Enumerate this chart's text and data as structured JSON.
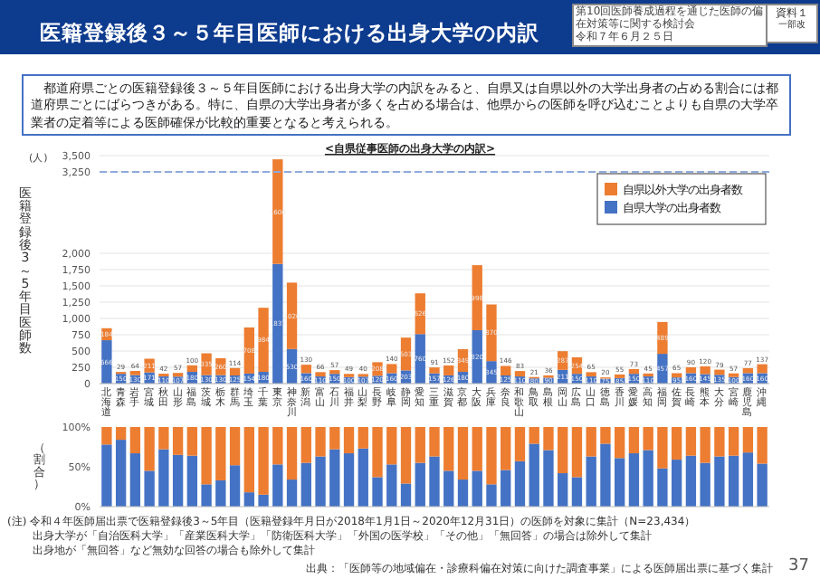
{
  "chart_data": [
    {
      "type": "bar",
      "stacked": true,
      "title": "医籍登録後３～５年目医師における出身大学の内訳",
      "subtitle": "<自県従事医師の出身大学の内訳>",
      "ylabel": "医籍登録後3～5年目医師数",
      "annotations": [
        "第10回医師養成過程を通じた医師の偏在対策等に関する検討会",
        "令和７年６月２５日",
        "資料１",
        "一部改",
        "都道府県ごとの医籍登録後３～５年目医師における出身大学の内訳をみると、自県又は自県以外の大学出身者の占める割合には都道府県ごとにばらつきがある。特に、自県の大学出身者が多くを占める場合は、他県からの医師を呼び込むことよりも自県の大学卒業者の定着等による医師確保が比較的重要となると考えられる。",
        "(人)",
        "(注) 令和４年医師届出票で医籍登録後3～5年目（医籍登録年月日が2018年1月1日～2020年12月31日）の医師を対象に集計（N=23,434）",
        "出身大学が「自治医科大学」「産業医科大学」「防衛医科大学」「外国の医学校」「その他」「無回答」の場合は除外して集計",
        "出身地が「無回答」など無効な回答の場合も除外して集計",
        "出典：「医師等の地域偏在・診療科偏在対策に向けた調査事業」による医師届出票に基づく集計",
        "37"
      ],
      "categories": [
        "北海道",
        "青森",
        "岩手",
        "宮城",
        "秋田",
        "山形",
        "福島",
        "茨城",
        "栃木",
        "群馬",
        "埼玉",
        "千葉",
        "東京",
        "神奈川",
        "新潟",
        "富山",
        "石川",
        "福井",
        "山梨",
        "長野",
        "岐阜",
        "静岡",
        "愛知",
        "三重",
        "滋賀",
        "京都",
        "大阪",
        "兵庫",
        "奈良",
        "和歌山",
        "鳥取",
        "島根",
        "岡山",
        "広島",
        "山口",
        "徳島",
        "香川",
        "愛媛",
        "高知",
        "福岡",
        "佐賀",
        "長崎",
        "熊本",
        "大分",
        "宮崎",
        "鹿児島",
        "沖縄"
      ],
      "series": [
        {
          "name": "自県大学の出身者数",
          "color": "#4472c4",
          "values": [
            666,
            150,
            130,
            171,
            110,
            107,
            180,
            130,
            130,
            125,
            154,
            180,
            1837,
            530,
            160,
            110,
            150,
            100,
            107,
            120,
            160,
            203,
            760,
            157,
            126,
            180,
            820,
            345,
            125,
            110,
            80,
            90,
            211,
            150,
            110,
            75,
            85,
            150,
            110,
            457,
            95,
            160,
            145,
            135,
            100,
            160,
            160
          ]
        },
        {
          "name": "自県以外大学の出身者数",
          "color": "#ed7d31",
          "values": [
            184,
            29,
            64,
            211,
            42,
            57,
            100,
            335,
            260,
            114,
            708,
            984,
            1606,
            1020,
            130,
            66,
            57,
            49,
            40,
            208,
            140,
            503,
            626,
            91,
            152,
            349,
            998,
            870,
            146,
            83,
            21,
            36,
            287,
            254,
            65,
            20,
            55,
            73,
            45,
            489,
            65,
            90,
            120,
            79,
            57,
            77,
            137
          ]
        }
      ],
      "ylim": [
        0,
        3500
      ],
      "yticks": [
        0,
        250,
        500,
        750,
        {
          "value": 1000,
          "label": "1,000"
        },
        {
          "value": 1250,
          "label": "1,250"
        },
        {
          "value": 1500,
          "label": "1,500"
        },
        {
          "value": 1750,
          "label": "1,750"
        },
        {
          "value": 2000,
          "label": "2,000"
        },
        {
          "value": 3250,
          "label": "3,250"
        },
        {
          "value": 3500,
          "label": "3,500"
        }
      ],
      "ref_lines": [
        {
          "axis": "y",
          "value": 3250,
          "line_style": "dashed",
          "color": "#8faadc"
        }
      ],
      "data_labels": true,
      "grid": "y",
      "legend": "top right"
    },
    {
      "type": "bar",
      "stacked": true,
      "ylabel": "（割合）",
      "categories": [
        "北海道",
        "青森",
        "岩手",
        "宮城",
        "秋田",
        "山形",
        "福島",
        "茨城",
        "栃木",
        "群馬",
        "埼玉",
        "千葉",
        "東京",
        "神奈川",
        "新潟",
        "富山",
        "石川",
        "福井",
        "山梨",
        "長野",
        "岐阜",
        "静岡",
        "愛知",
        "三重",
        "滋賀",
        "京都",
        "大阪",
        "兵庫",
        "奈良",
        "和歌山",
        "鳥取",
        "島根",
        "岡山",
        "広島",
        "山口",
        "徳島",
        "香川",
        "愛媛",
        "高知",
        "福岡",
        "佐賀",
        "長崎",
        "熊本",
        "大分",
        "宮崎",
        "鹿児島",
        "沖縄"
      ],
      "series": [
        {
          "color": "#4472c4",
          "values": [
            78,
            84,
            67,
            45,
            72,
            65,
            64,
            28,
            33,
            52,
            18,
            15,
            53,
            34,
            55,
            63,
            72,
            67,
            73,
            37,
            53,
            29,
            55,
            63,
            45,
            34,
            45,
            28,
            46,
            57,
            79,
            71,
            42,
            37,
            63,
            79,
            61,
            67,
            71,
            48,
            59,
            64,
            55,
            63,
            64,
            68,
            54
          ]
        },
        {
          "color": "#ed7d31",
          "values": [
            22,
            16,
            33,
            55,
            28,
            35,
            36,
            72,
            67,
            48,
            82,
            85,
            47,
            66,
            45,
            37,
            28,
            33,
            27,
            63,
            47,
            71,
            45,
            37,
            55,
            66,
            55,
            72,
            54,
            43,
            21,
            29,
            58,
            63,
            37,
            21,
            39,
            33,
            29,
            52,
            41,
            36,
            45,
            37,
            36,
            32,
            46
          ]
        }
      ],
      "ylim": [
        0,
        100
      ],
      "yticks": [
        {
          "value": 0,
          "label": "0%"
        },
        {
          "value": 50,
          "label": "50%"
        },
        {
          "value": 100,
          "label": "100%"
        }
      ],
      "tick_labels": "y"
    }
  ]
}
